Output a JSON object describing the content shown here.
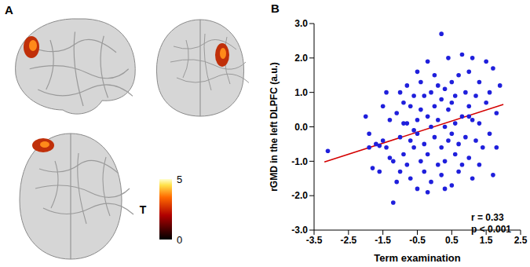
{
  "panel_labels": [
    "A",
    "B"
  ],
  "colorbar": {
    "label": "T",
    "range": [
      0,
      5
    ],
    "ticks": [
      0,
      5
    ]
  },
  "chart_data": {
    "type": "scatter",
    "x_label": "Term examination",
    "y_label": "rGMD in the left DLPFC (a.u.)",
    "xlim": [
      -3.5,
      2.5
    ],
    "xticks": [
      -3.5,
      -2.5,
      -1.5,
      -0.5,
      0.5,
      1.5,
      2.5
    ],
    "ylim": [
      -3,
      3
    ],
    "yticks": [
      {
        "value": -3,
        "label": "-3.0"
      },
      {
        "value": -2,
        "label": "-2.0"
      },
      {
        "value": -1,
        "label": "-1.0"
      },
      {
        "value": 0,
        "label": "0.0"
      },
      {
        "value": 1,
        "label": "1.0"
      },
      {
        "value": 2,
        "label": "2.0"
      },
      {
        "value": 3,
        "label": "3.0"
      }
    ],
    "color": "#1f1fdc",
    "marker": "circle",
    "x": [
      -3.1,
      -2.0,
      -1.9,
      -1.8,
      -1.7,
      -1.6,
      -1.6,
      -1.5,
      -1.5,
      -1.4,
      -1.3,
      -1.3,
      -1.2,
      -1.2,
      -1.1,
      -1.1,
      -1.0,
      -1.0,
      -1.0,
      -0.9,
      -0.9,
      -0.8,
      -0.8,
      -0.8,
      -0.7,
      -0.7,
      -0.7,
      -0.6,
      -0.6,
      -0.5,
      -0.5,
      -0.5,
      -0.5,
      -0.4,
      -0.4,
      -0.4,
      -0.3,
      -0.3,
      -0.3,
      -0.2,
      -0.2,
      -0.2,
      -0.1,
      -0.1,
      -0.1,
      0.0,
      0.0,
      0.0,
      0.1,
      0.1,
      0.2,
      0.2,
      0.2,
      0.2,
      0.3,
      0.3,
      0.3,
      0.4,
      0.4,
      0.4,
      0.5,
      0.5,
      0.5,
      0.6,
      0.6,
      0.6,
      0.7,
      0.7,
      0.7,
      0.8,
      0.8,
      0.8,
      0.9,
      0.9,
      1.0,
      1.0,
      1.0,
      1.1,
      1.1,
      1.1,
      1.2,
      1.2,
      1.3,
      1.3,
      1.3,
      1.4,
      1.5,
      1.5,
      1.6,
      1.6,
      1.7,
      1.7,
      1.8,
      1.8,
      1.9,
      -1.9,
      -1.4,
      -0.6,
      0.1,
      -0.9,
      0.5,
      1.0,
      -0.2,
      0.3
    ],
    "values": [
      -0.7,
      0.3,
      -0.2,
      -1.2,
      -0.5,
      -0.55,
      -1.3,
      0.6,
      -0.4,
      1.0,
      0.2,
      -0.9,
      -2.2,
      -1.0,
      0.4,
      -1.6,
      1.0,
      -0.3,
      -1.3,
      0.7,
      -0.8,
      0.1,
      -1.1,
      1.2,
      -0.4,
      0.6,
      -1.5,
      0.9,
      -0.6,
      1.6,
      0.2,
      -0.2,
      -1.8,
      1.3,
      0.5,
      -1.0,
      0.9,
      -0.5,
      -1.3,
      1.9,
      0.3,
      -0.8,
      1.0,
      0.0,
      -1.6,
      0.6,
      -0.3,
      1.5,
      -1.1,
      0.2,
      2.7,
      0.8,
      -0.6,
      -1.4,
      1.1,
      0.0,
      -1.0,
      2.0,
      0.5,
      -0.4,
      1.3,
      -0.2,
      -1.7,
      0.9,
      0.1,
      -0.8,
      1.5,
      -0.5,
      -1.3,
      0.3,
      2.1,
      -1.1,
      1.0,
      -0.3,
      1.6,
      0.6,
      -0.9,
      2.0,
      0.2,
      -1.5,
      0.9,
      -0.4,
      1.3,
      0.1,
      -1.1,
      -0.6,
      0.7,
      1.9,
      -0.2,
      1.0,
      1.7,
      -1.4,
      0.4,
      -0.6,
      1.2,
      -0.6,
      -0.6,
      -0.1,
      1.2,
      0.1,
      0.7,
      0.3,
      -1.9,
      -1.8
    ],
    "trend_line": {
      "x": [
        -3.2,
        2.0
      ],
      "values": [
        -1.02,
        0.65
      ],
      "color": "#d40000"
    },
    "annotations": [
      "r = 0.33",
      "p < 0.001"
    ]
  }
}
